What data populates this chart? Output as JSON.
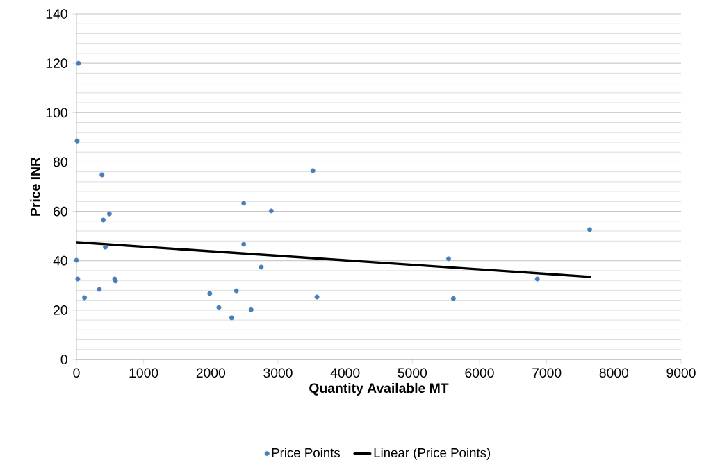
{
  "chart_data": {
    "type": "scatter",
    "xlabel": "Quantity Available MT",
    "ylabel": "Price INR",
    "xlim": [
      0,
      9000
    ],
    "xticks": [
      0,
      1000,
      2000,
      3000,
      4000,
      5000,
      6000,
      7000,
      8000,
      9000
    ],
    "ylim": [
      0,
      140
    ],
    "yticks": [
      0,
      20,
      40,
      60,
      80,
      100,
      120,
      140
    ],
    "grid": "y",
    "legend": "bottom",
    "marker": "circle",
    "series": [
      {
        "name": "Price Points",
        "color": "#4a7ebb",
        "x": [
          30,
          10,
          380,
          490,
          400,
          430,
          0,
          20,
          340,
          120,
          570,
          580,
          1985,
          2120,
          2380,
          2310,
          2600,
          2490,
          2750,
          2490,
          2900,
          3520,
          3580,
          5540,
          5610,
          6860,
          7640
        ],
        "values": [
          120,
          88.5,
          74.8,
          59,
          56.5,
          45.5,
          40.2,
          32.6,
          28.4,
          25,
          32.6,
          31.8,
          26.7,
          21.1,
          27.8,
          16.9,
          20.2,
          46.7,
          37.4,
          63.3,
          60.2,
          76.5,
          25.3,
          40.8,
          24.7,
          32.6,
          52.6
        ]
      },
      {
        "name": "Linear (Price Points)",
        "color": "#000000",
        "type": "line",
        "marker": "none",
        "x": [
          0,
          7640
        ],
        "values": [
          47.5,
          33.5
        ]
      }
    ]
  }
}
